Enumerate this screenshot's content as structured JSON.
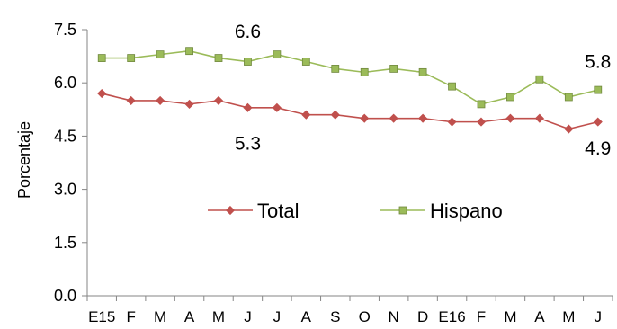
{
  "chart_data": {
    "type": "line",
    "title": "",
    "xlabel": "",
    "ylabel": "Porcentaje",
    "ylim": [
      0,
      7.5
    ],
    "yticks": [
      "0.0",
      "1.5",
      "3.0",
      "4.5",
      "6.0",
      "7.5"
    ],
    "categories": [
      "E15",
      "F",
      "M",
      "A",
      "M",
      "J",
      "J",
      "A",
      "S",
      "O",
      "N",
      "D",
      "E16",
      "F",
      "M",
      "A",
      "M",
      "J"
    ],
    "grid": false,
    "legend_position": "center",
    "series": [
      {
        "name": "Total",
        "color": "#C0504D",
        "marker": "diamond",
        "values": [
          5.7,
          5.5,
          5.5,
          5.4,
          5.5,
          5.3,
          5.3,
          5.1,
          5.1,
          5.0,
          5.0,
          5.0,
          4.9,
          4.9,
          5.0,
          5.0,
          4.7,
          4.9
        ]
      },
      {
        "name": "Hispano",
        "color": "#9BBB59",
        "marker": "square",
        "values": [
          6.7,
          6.7,
          6.8,
          6.9,
          6.7,
          6.6,
          6.8,
          6.6,
          6.4,
          6.3,
          6.4,
          6.3,
          5.9,
          5.4,
          5.6,
          6.1,
          5.6,
          5.8
        ]
      }
    ],
    "annotations": [
      {
        "text": "6.6",
        "category_index": 5,
        "y": 7.45
      },
      {
        "text": "5.3",
        "category_index": 5,
        "y": 4.3
      },
      {
        "text": "5.8",
        "category_index": 17,
        "y": 6.6
      },
      {
        "text": "4.9",
        "category_index": 17,
        "y": 4.15
      }
    ]
  }
}
